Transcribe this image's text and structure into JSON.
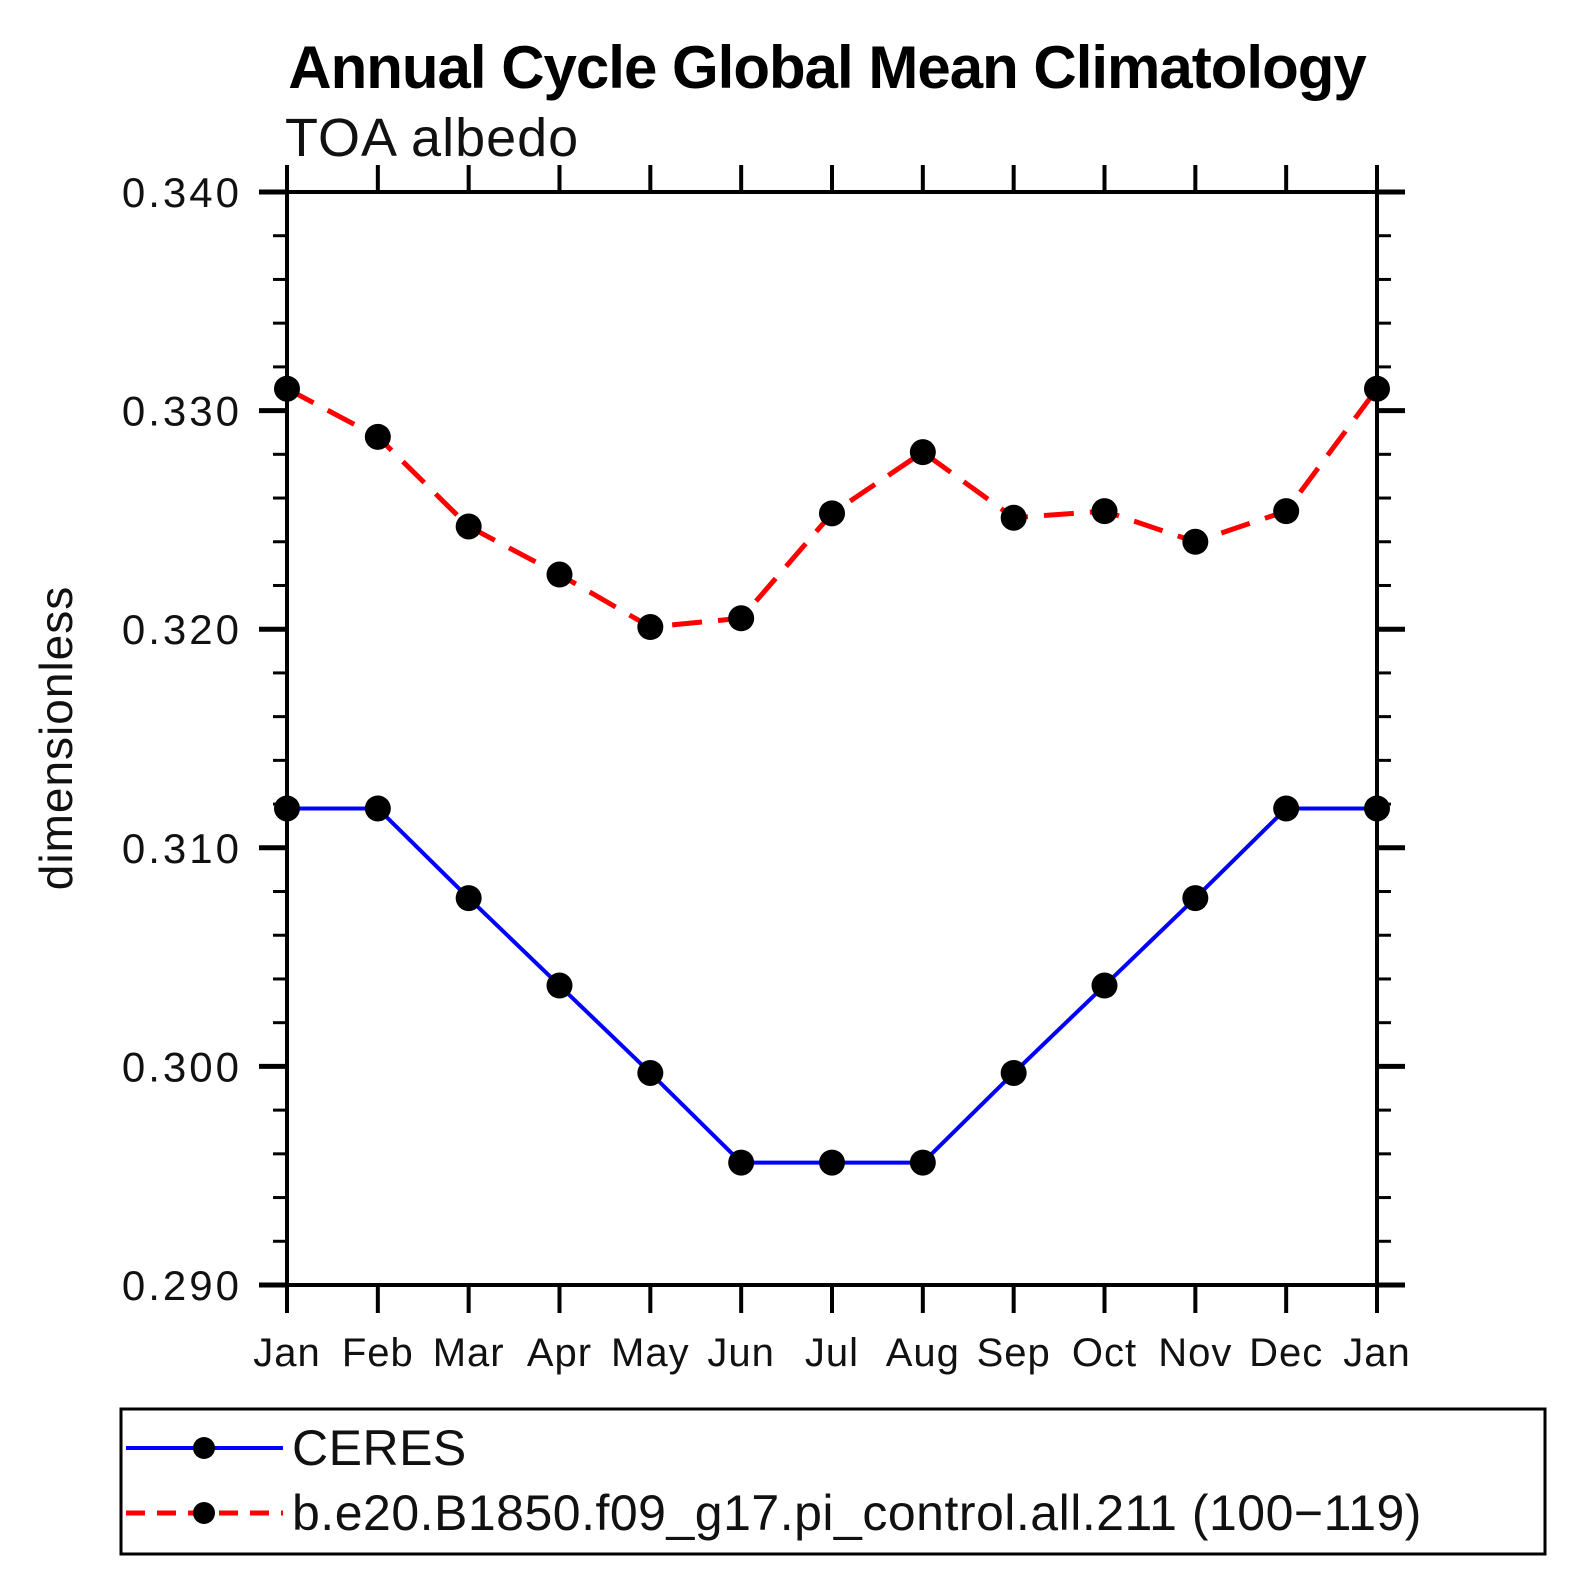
{
  "page": {
    "background": "#ffffff"
  },
  "legend": [
    {
      "label": "CERES",
      "color": "#0000ff",
      "line": "solid",
      "marker": "filled-circle",
      "marker_color": "#000000"
    },
    {
      "label": "b.e20.B1850.f09_g17.pi_control.all.211 (100−119)",
      "color": "#ff0000",
      "line": "dashed",
      "marker": "filled-circle",
      "marker_color": "#000000"
    }
  ],
  "chart_data": {
    "type": "line",
    "title": "Annual Cycle Global Mean Climatology",
    "subtitle": "TOA albedo",
    "ylabel": "dimensionless",
    "xlabel": "",
    "categories": [
      "Jan",
      "Feb",
      "Mar",
      "Apr",
      "May",
      "Jun",
      "Jul",
      "Aug",
      "Sep",
      "Oct",
      "Nov",
      "Dec",
      "Jan"
    ],
    "ylim": [
      0.29,
      0.34
    ],
    "ytick_major": 0.01,
    "ytick_minor": 0.002,
    "ytick_labels": [
      "0.290",
      "0.300",
      "0.310",
      "0.320",
      "0.330",
      "0.340"
    ],
    "grid": false,
    "legend_position": "bottom-left-box",
    "marker_color": "#000000",
    "series": [
      {
        "name": "CERES",
        "color": "#0000ff",
        "line": "solid",
        "values": [
          0.3118,
          0.3118,
          0.3077,
          0.3037,
          0.2997,
          0.2956,
          0.2956,
          0.2956,
          0.2997,
          0.3037,
          0.3077,
          0.3118,
          0.3118
        ]
      },
      {
        "name": "b.e20.B1850.f09_g17.pi_control.all.211 (100−119)",
        "color": "#ff0000",
        "line": "dashed",
        "values": [
          0.331,
          0.3288,
          0.3247,
          0.3225,
          0.3201,
          0.3205,
          0.3253,
          0.3281,
          0.3251,
          0.3254,
          0.324,
          0.3254,
          0.331
        ]
      }
    ]
  }
}
